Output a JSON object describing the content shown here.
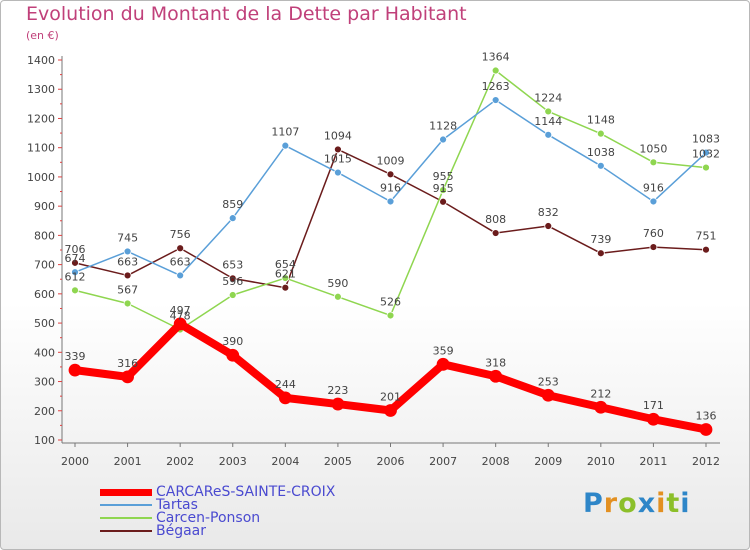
{
  "title": "Evolution du Montant de la Dette par Habitant",
  "subtitle": "(en €)",
  "logo": {
    "text": "Proxiti",
    "colors": [
      "#2e86c8",
      "#e39021",
      "#8cbf2a",
      "#2e86c8",
      "#e39021",
      "#8cbf2a",
      "#2e86c8"
    ]
  },
  "chart_data": {
    "type": "line",
    "x": [
      "2000",
      "2001",
      "2002",
      "2003",
      "2004",
      "2005",
      "2006",
      "2007",
      "2008",
      "2009",
      "2010",
      "2011",
      "2012"
    ],
    "ylim": [
      100,
      1400
    ],
    "yticks": [
      100,
      200,
      300,
      400,
      500,
      600,
      700,
      800,
      900,
      1000,
      1100,
      1200,
      1300,
      1400
    ],
    "grid": false,
    "legend": "bottom-left",
    "series": [
      {
        "name": "CARCAReS-SAINTE-CROIX",
        "color": "#ff0000",
        "width": 8,
        "values": [
          339,
          316,
          497,
          390,
          244,
          223,
          201,
          359,
          318,
          253,
          212,
          171,
          136
        ]
      },
      {
        "name": "Tartas",
        "color": "#5a9fd8",
        "width": 1.5,
        "values": [
          674,
          745,
          663,
          859,
          1107,
          1015,
          916,
          1128,
          1263,
          1144,
          1038,
          916,
          1083
        ]
      },
      {
        "name": "Carcen-Ponson",
        "color": "#8fd650",
        "width": 1.5,
        "values": [
          612,
          567,
          478,
          596,
          654,
          590,
          526,
          955,
          1364,
          1224,
          1148,
          1050,
          1032
        ]
      },
      {
        "name": "Bégaar",
        "color": "#6b1c1c",
        "width": 1.5,
        "values": [
          706,
          663,
          756,
          653,
          621,
          1094,
          1009,
          915,
          808,
          832,
          739,
          760,
          751
        ]
      }
    ]
  }
}
